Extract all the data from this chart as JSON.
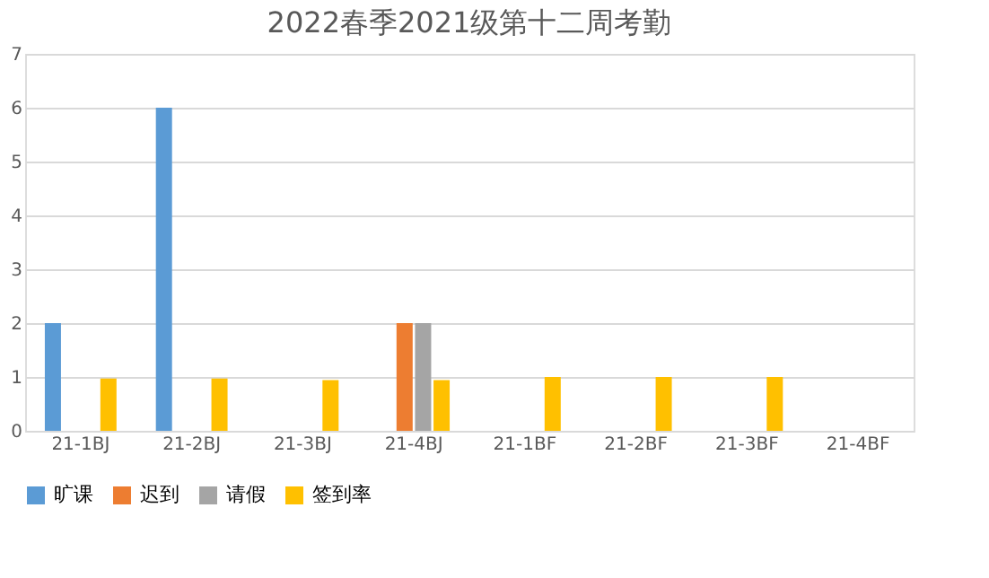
{
  "chart_data": {
    "type": "bar",
    "title": "2022春季2021级第十二周考勤",
    "categories": [
      "21-1BJ",
      "21-2BJ",
      "21-3BJ",
      "21-4BJ",
      "21-1BF",
      "21-2BF",
      "21-3BF",
      "21-4BF"
    ],
    "series": [
      {
        "name": "旷课",
        "color": "#5b9bd5",
        "values": [
          2,
          6,
          null,
          null,
          null,
          null,
          null,
          null
        ]
      },
      {
        "name": "迟到",
        "color": "#ed7d31",
        "values": [
          null,
          null,
          null,
          2,
          null,
          null,
          null,
          null
        ]
      },
      {
        "name": "请假",
        "color": "#a5a5a5",
        "values": [
          null,
          null,
          null,
          2,
          null,
          null,
          null,
          null
        ]
      },
      {
        "name": "签到率",
        "color": "#ffc000",
        "values": [
          0.97,
          0.97,
          0.94,
          0.94,
          1,
          1,
          1,
          null
        ]
      }
    ],
    "ylim": [
      0,
      7
    ],
    "yticks": [
      0,
      1,
      2,
      3,
      4,
      5,
      6,
      7
    ],
    "grid": "y",
    "legend": "bottom"
  }
}
